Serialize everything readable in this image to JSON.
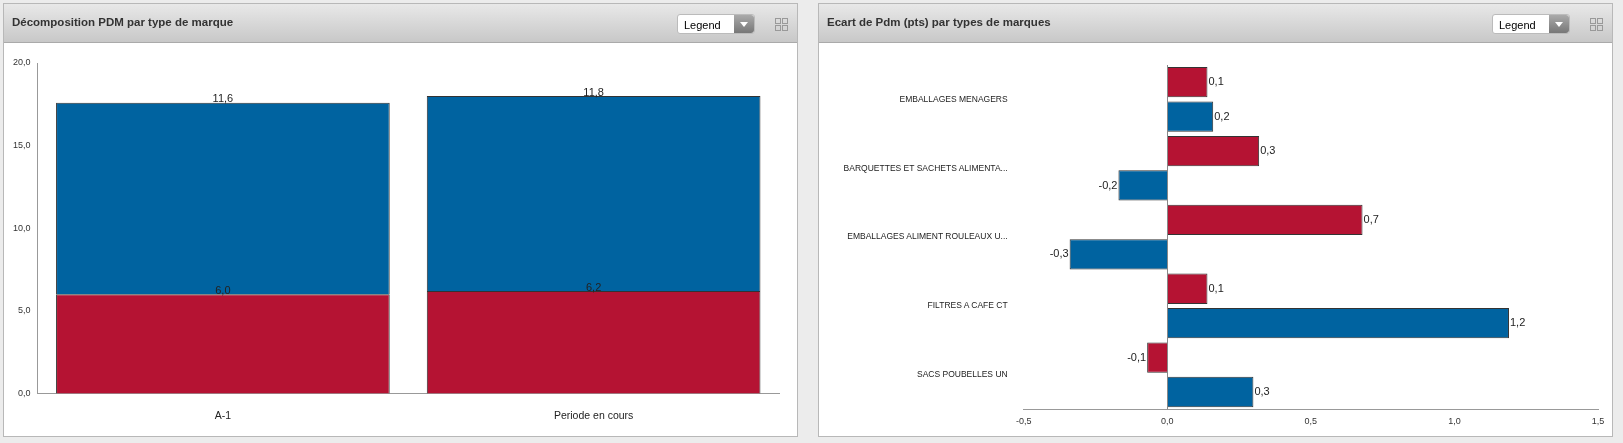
{
  "chart_data": [
    {
      "type": "bar",
      "title": "Décomposition PDM par type de marque",
      "annotations": [
        "Legend"
      ],
      "categories": [
        "A-1",
        "Periode en cours"
      ],
      "stacked": true,
      "ylim": [
        0,
        20
      ],
      "yticks": [
        {
          "value": 0,
          "label": "0,0"
        },
        {
          "value": 5,
          "label": "5,0"
        },
        {
          "value": 10,
          "label": "10,0"
        },
        {
          "value": 15,
          "label": "15,0"
        },
        {
          "value": 20,
          "label": "20,0"
        }
      ],
      "grid": false,
      "legend": false,
      "series": [
        {
          "color": "#b51333",
          "values": [
            6.0,
            6.2
          ],
          "value_labels": [
            "6,0",
            "6,2"
          ]
        },
        {
          "color": "#0063a0",
          "values": [
            11.6,
            11.8
          ],
          "value_labels": [
            "11,6",
            "11,8"
          ]
        }
      ]
    },
    {
      "type": "bar",
      "title": "Ecart de Pdm (pts) par types de marques",
      "annotations": [
        "Legend"
      ],
      "orientation": "horizontal",
      "categories": [
        "EMBALLAGES MENAGERS",
        "BARQUETTES ET SACHETS ALIMENTA...",
        "EMBALLAGES ALIMENT ROULEAUX U...",
        "FILTRES A CAFE CT",
        "SACS POUBELLES UN"
      ],
      "xlim": [
        -0.5,
        1.5
      ],
      "xticks": [
        {
          "value": -0.5,
          "label": "-0,5"
        },
        {
          "value": 0,
          "label": "0,0"
        },
        {
          "value": 0.5,
          "label": "0,5"
        },
        {
          "value": 1,
          "label": "1,0"
        },
        {
          "value": 1.5,
          "label": "1,5"
        }
      ],
      "grid": false,
      "legend": false,
      "ref_lines": [
        {
          "axis": "x",
          "value": 0,
          "color": "#888888"
        }
      ],
      "series": [
        {
          "color": "#b51333",
          "values": [
            0.14,
            0.32,
            0.68,
            0.14,
            -0.07
          ],
          "value_labels": [
            "0,1",
            "0,3",
            "0,7",
            "0,1",
            "-0,1"
          ]
        },
        {
          "color": "#0063a0",
          "values": [
            0.16,
            -0.17,
            -0.34,
            1.19,
            0.3
          ],
          "value_labels": [
            "0,2",
            "-0,2",
            "-0,3",
            "1,2",
            "0,3"
          ]
        }
      ]
    }
  ]
}
